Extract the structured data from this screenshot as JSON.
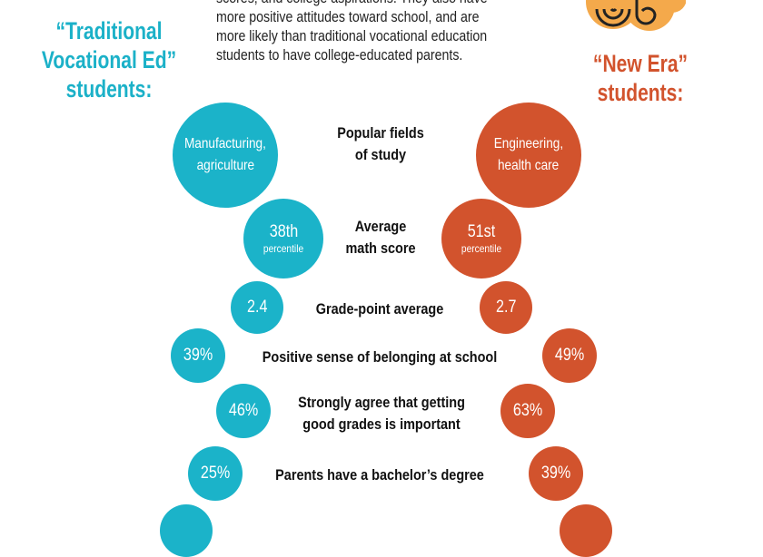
{
  "intro": {
    "lines": [
      "scores, and college aspirations. They also have",
      "more positive attitudes toward school, and are",
      "more likely than traditional vocational education",
      "students to have college-educated parents."
    ]
  },
  "left_title": [
    "“Traditional",
    "Vocational Ed”",
    "students:"
  ],
  "right_title": [
    "“New Era”",
    "students:"
  ],
  "colors": {
    "traditional": "#1bb3c9",
    "new_era": "#d2532d",
    "logo": "#f4a94b"
  },
  "logo": {
    "icon": "spiral-logo-icon"
  },
  "rows": [
    {
      "label": [
        "Popular fields",
        "of study"
      ],
      "traditional": [
        "Manufacturing,",
        "agriculture"
      ],
      "new_era": [
        "Engineering,",
        "health care"
      ]
    },
    {
      "label": [
        "Average",
        "math score"
      ],
      "traditional": [
        "38th",
        "percentile"
      ],
      "new_era": [
        "51st",
        "percentile"
      ]
    },
    {
      "label": [
        "Grade-point average"
      ],
      "traditional": [
        "2.4"
      ],
      "new_era": [
        "2.7"
      ]
    },
    {
      "label": [
        "Positive sense of belonging at school"
      ],
      "traditional": [
        "39%"
      ],
      "new_era": [
        "49%"
      ]
    },
    {
      "label": [
        "Strongly agree that getting",
        "good grades is important"
      ],
      "traditional": [
        "46%"
      ],
      "new_era": [
        "63%"
      ]
    },
    {
      "label": [
        "Parents have a bachelor’s degree"
      ],
      "traditional": [
        "25%"
      ],
      "new_era": [
        "39%"
      ]
    }
  ]
}
